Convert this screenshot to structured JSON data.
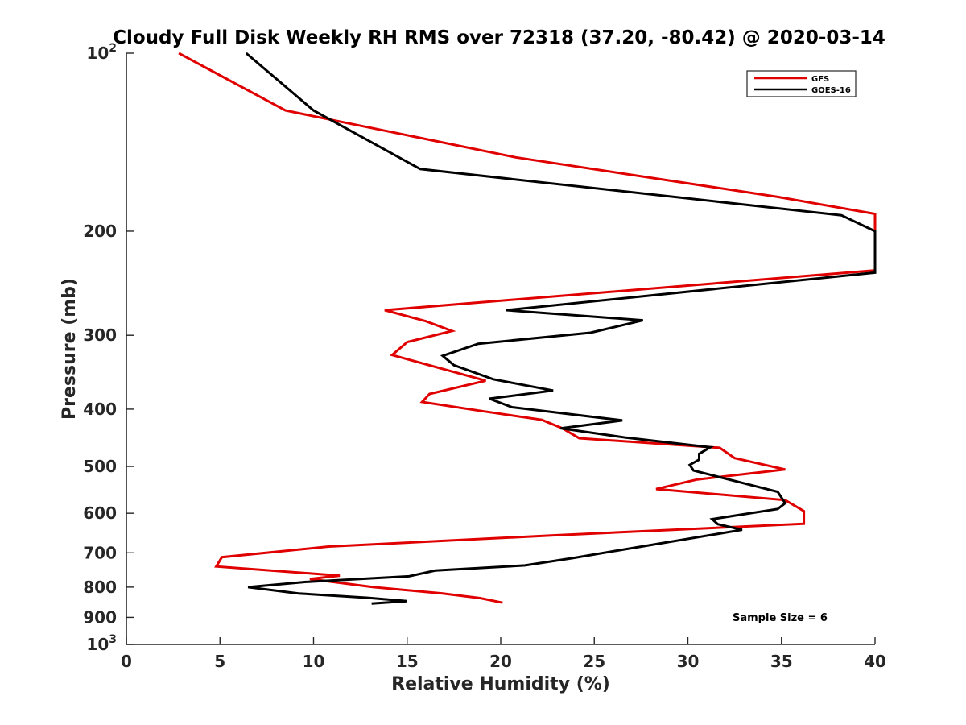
{
  "chart_data": {
    "type": "line",
    "title": "Cloudy Full Disk Weekly RH RMS over 72318 (37.20, -80.42) @ 2020-03-14",
    "xlabel": "Relative Humidity (%)",
    "ylabel": "Pressure (mb)",
    "xlim": [
      0,
      40
    ],
    "ylim": [
      100,
      1000
    ],
    "yscale": "log",
    "y_reversed": true,
    "grid": false,
    "legend_position": "top-right",
    "x_ticks": [
      {
        "value": 0,
        "label": "0"
      },
      {
        "value": 5,
        "label": "5"
      },
      {
        "value": 10,
        "label": "10"
      },
      {
        "value": 15,
        "label": "15"
      },
      {
        "value": 20,
        "label": "20"
      },
      {
        "value": 25,
        "label": "25"
      },
      {
        "value": 30,
        "label": "30"
      },
      {
        "value": 35,
        "label": "35"
      },
      {
        "value": 40,
        "label": "40"
      }
    ],
    "y_ticks": [
      {
        "value": 100,
        "label": "10",
        "sup": "2"
      },
      {
        "value": 200,
        "label": "200"
      },
      {
        "value": 300,
        "label": "300"
      },
      {
        "value": 400,
        "label": "400"
      },
      {
        "value": 500,
        "label": "500"
      },
      {
        "value": 600,
        "label": "600"
      },
      {
        "value": 700,
        "label": "700"
      },
      {
        "value": 800,
        "label": "800"
      },
      {
        "value": 900,
        "label": "900"
      },
      {
        "value": 1000,
        "label": "10",
        "sup": "3"
      }
    ],
    "series": [
      {
        "name": "GFS",
        "color": "#e00000",
        "points": [
          [
            2.8,
            100
          ],
          [
            8.5,
            125
          ],
          [
            20.8,
            150
          ],
          [
            34.8,
            175
          ],
          [
            40,
            187
          ],
          [
            40,
            233
          ],
          [
            13.8,
            272
          ],
          [
            16,
            284
          ],
          [
            17.4,
            295
          ],
          [
            15,
            308
          ],
          [
            14.2,
            324
          ],
          [
            19.2,
            358
          ],
          [
            16.2,
            377
          ],
          [
            15.8,
            389
          ],
          [
            19,
            403
          ],
          [
            22.2,
            417
          ],
          [
            23.3,
            431
          ],
          [
            24.2,
            448
          ],
          [
            31.7,
            465
          ],
          [
            32.5,
            484
          ],
          [
            35.2,
            506
          ],
          [
            30.5,
            526
          ],
          [
            28.3,
            546
          ],
          [
            35.2,
            570
          ],
          [
            36.2,
            595
          ],
          [
            36.2,
            625
          ],
          [
            22.8,
            654
          ],
          [
            10.8,
            683
          ],
          [
            5.1,
            712
          ],
          [
            4.8,
            738
          ],
          [
            11.4,
            765
          ],
          [
            9.8,
            775
          ],
          [
            13.2,
            800
          ],
          [
            16.9,
            820
          ],
          [
            18.9,
            835
          ],
          [
            20.1,
            850
          ]
        ]
      },
      {
        "name": "GOES-16",
        "color": "#000000",
        "points": [
          [
            6.4,
            100
          ],
          [
            10,
            125
          ],
          [
            15.7,
            157
          ],
          [
            38.2,
            188
          ],
          [
            40,
            200
          ],
          [
            40,
            235
          ],
          [
            20.3,
            272
          ],
          [
            27.6,
            283
          ],
          [
            24.8,
            297
          ],
          [
            18.8,
            310
          ],
          [
            16.9,
            325
          ],
          [
            17.5,
            337
          ],
          [
            19.6,
            356
          ],
          [
            22.8,
            372
          ],
          [
            19.4,
            384
          ],
          [
            20.6,
            397
          ],
          [
            26.5,
            418
          ],
          [
            23.2,
            431
          ],
          [
            26.7,
            447
          ],
          [
            31.2,
            464
          ],
          [
            30.6,
            476
          ],
          [
            30.6,
            487
          ],
          [
            30.1,
            497
          ],
          [
            30.3,
            508
          ],
          [
            34.8,
            552
          ],
          [
            35.2,
            577
          ],
          [
            34.8,
            590
          ],
          [
            31.3,
            614
          ],
          [
            31.6,
            626
          ],
          [
            32.9,
            640
          ],
          [
            26.2,
            694
          ],
          [
            23.9,
            714
          ],
          [
            21.3,
            735
          ],
          [
            16.5,
            750
          ],
          [
            15.1,
            767
          ],
          [
            9.6,
            784
          ],
          [
            6.5,
            800
          ],
          [
            9.2,
            820
          ],
          [
            12.9,
            834
          ],
          [
            15,
            845
          ],
          [
            13.1,
            853
          ]
        ]
      }
    ],
    "annotations": [
      {
        "text": "Sample Size = 6"
      }
    ]
  }
}
